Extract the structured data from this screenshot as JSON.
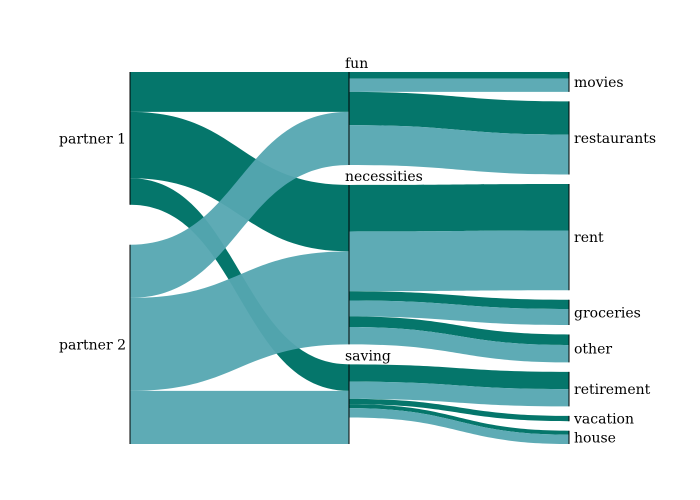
{
  "colors": {
    "partner_1": "#007368",
    "partner_2": "#55a7b1",
    "axis": "#000000"
  },
  "chart_data": {
    "type": "sankey",
    "title": "",
    "columns": [
      [
        "partner 1",
        "partner 2"
      ],
      [
        "fun",
        "necessities",
        "saving"
      ],
      [
        "movies",
        "restaurants",
        "rent",
        "groceries",
        "other",
        "retirement",
        "vacation",
        "house"
      ]
    ],
    "flows": [
      {
        "from": "partner 1",
        "to": "fun",
        "value": 3,
        "color_key": "partner_1"
      },
      {
        "from": "partner 1",
        "to": "necessities",
        "value": 5,
        "color_key": "partner_1"
      },
      {
        "from": "partner 1",
        "to": "saving",
        "value": 2,
        "color_key": "partner_1"
      },
      {
        "from": "partner 2",
        "to": "fun",
        "value": 4,
        "color_key": "partner_2"
      },
      {
        "from": "partner 2",
        "to": "necessities",
        "value": 7,
        "color_key": "partner_2"
      },
      {
        "from": "partner 2",
        "to": "saving",
        "value": 4,
        "color_key": "partner_2"
      },
      {
        "from": "fun",
        "to": "movies",
        "value": 0.5,
        "color_key": "partner_1"
      },
      {
        "from": "fun",
        "to": "movies",
        "value": 1,
        "color_key": "partner_2"
      },
      {
        "from": "fun",
        "to": "restaurants",
        "value": 2.5,
        "color_key": "partner_1"
      },
      {
        "from": "fun",
        "to": "restaurants",
        "value": 3,
        "color_key": "partner_2"
      },
      {
        "from": "necessities",
        "to": "rent",
        "value": 3.5,
        "color_key": "partner_1"
      },
      {
        "from": "necessities",
        "to": "rent",
        "value": 4.5,
        "color_key": "partner_2"
      },
      {
        "from": "necessities",
        "to": "groceries",
        "value": 0.7,
        "color_key": "partner_1"
      },
      {
        "from": "necessities",
        "to": "groceries",
        "value": 1.2,
        "color_key": "partner_2"
      },
      {
        "from": "necessities",
        "to": "other",
        "value": 0.8,
        "color_key": "partner_1"
      },
      {
        "from": "necessities",
        "to": "other",
        "value": 1.3,
        "color_key": "partner_2"
      },
      {
        "from": "saving",
        "to": "retirement",
        "value": 1.3,
        "color_key": "partner_1"
      },
      {
        "from": "saving",
        "to": "retirement",
        "value": 1.3,
        "color_key": "partner_2"
      },
      {
        "from": "saving",
        "to": "vacation",
        "value": 0.4,
        "color_key": "partner_1"
      },
      {
        "from": "saving",
        "to": "house",
        "value": 0.3,
        "color_key": "partner_1"
      },
      {
        "from": "saving",
        "to": "house",
        "value": 0.7,
        "color_key": "partner_2"
      }
    ]
  }
}
